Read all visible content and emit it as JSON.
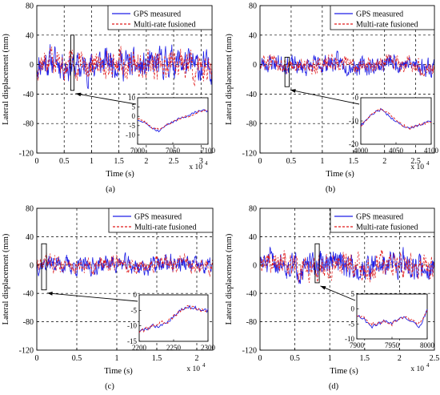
{
  "colors": {
    "gps": "#1f1fe6",
    "fusion": "#e01a1a",
    "grid": "#000000"
  },
  "chart_data": [
    {
      "type": "line",
      "panel_label": "(a)",
      "xlabel": "Time (s)",
      "ylabel": "Lateral displacement (mm)",
      "x_multiplier": "x 10",
      "x_multiplier_exp": "4",
      "xlim": [
        0,
        3.2
      ],
      "ylim": [
        -120,
        80
      ],
      "xticks": [
        0,
        0.5,
        1,
        1.5,
        2,
        2.5,
        3
      ],
      "xtick_labels": [
        "0",
        "0.5",
        "1",
        "1.5",
        "2",
        "2.5",
        "3"
      ],
      "yticks": [
        -120,
        -80,
        -40,
        0,
        40,
        80
      ],
      "ytick_labels": [
        "-120",
        "-80",
        "-40",
        "0",
        "40",
        "80"
      ],
      "grid": true,
      "legend": {
        "placement": "top-right",
        "entries": [
          "GPS measured",
          "Multi-rate fusioned"
        ]
      },
      "series": [
        {
          "name": "GPS measured",
          "style": "solid",
          "amplitude": 18,
          "seed": 11
        },
        {
          "name": "Multi-rate fusioned",
          "style": "dashed",
          "amplitude": 17,
          "seed": 11
        }
      ],
      "highlight_window": {
        "x": [
          0.62,
          0.68
        ],
        "y": [
          -35,
          40
        ]
      },
      "inset": {
        "xlim": [
          7000,
          7100
        ],
        "ylim": [
          -15,
          10
        ],
        "xtick_labels": [
          "7000",
          "7050",
          "7100"
        ],
        "ytick_labels": [
          "-10",
          "-5",
          "0",
          "5",
          "10"
        ],
        "series": [
          {
            "name": "GPS measured",
            "x": [
              7000,
              7010,
              7020,
              7030,
              7040,
              7050,
              7060,
              7070,
              7080,
              7090,
              7100
            ],
            "y": [
              -2,
              -3,
              -6,
              -8,
              -5,
              -3,
              -1,
              0,
              2,
              3,
              3
            ]
          },
          {
            "name": "Multi-rate fusioned",
            "x": [
              7000,
              7010,
              7020,
              7030,
              7040,
              7050,
              7060,
              7070,
              7080,
              7090,
              7100
            ],
            "y": [
              -1,
              -3,
              -6,
              -7,
              -5,
              -3,
              -1,
              0,
              1,
              3,
              3
            ]
          }
        ]
      }
    },
    {
      "type": "line",
      "panel_label": "(b)",
      "xlabel": "Time (s)",
      "ylabel": "Lateral displacement (mm)",
      "x_multiplier": "x 10",
      "x_multiplier_exp": "4",
      "xlim": [
        0,
        2.8
      ],
      "ylim": [
        -120,
        80
      ],
      "xticks": [
        0,
        0.5,
        1,
        1.5,
        2,
        2.5
      ],
      "xtick_labels": [
        "0",
        "0.5",
        "1",
        "1.5",
        "2",
        "2.5"
      ],
      "yticks": [
        -120,
        -80,
        -40,
        0,
        40,
        80
      ],
      "ytick_labels": [
        "-120",
        "-80",
        "-40",
        "0",
        "40",
        "80"
      ],
      "grid": true,
      "legend": {
        "placement": "top-right",
        "entries": [
          "GPS measured",
          "Multi-rate fusioned"
        ]
      },
      "series": [
        {
          "name": "GPS measured",
          "style": "solid",
          "amplitude": 11,
          "seed": 23
        },
        {
          "name": "Multi-rate fusioned",
          "style": "dashed",
          "amplitude": 10,
          "seed": 23
        }
      ],
      "highlight_window": {
        "x": [
          0.4,
          0.47
        ],
        "y": [
          -30,
          10
        ]
      },
      "inset": {
        "xlim": [
          4000,
          4100
        ],
        "ylim": [
          -20,
          0
        ],
        "xtick_labels": [
          "4000",
          "4050",
          "4100"
        ],
        "ytick_labels": [
          "-20",
          "-10",
          "0"
        ],
        "series": [
          {
            "name": "GPS measured",
            "x": [
              4000,
              4010,
              4020,
              4030,
              4040,
              4050,
              4060,
              4070,
              4080,
              4090,
              4100
            ],
            "y": [
              -12,
              -9,
              -6,
              -5,
              -8,
              -10,
              -12,
              -13,
              -12,
              -11,
              -10
            ]
          },
          {
            "name": "Multi-rate fusioned",
            "x": [
              4000,
              4010,
              4020,
              4030,
              4040,
              4050,
              4060,
              4070,
              4080,
              4090,
              4100
            ],
            "y": [
              -12,
              -9,
              -6,
              -5,
              -7,
              -10,
              -12,
              -13,
              -12,
              -11,
              -10
            ]
          }
        ]
      }
    },
    {
      "type": "line",
      "panel_label": "(c)",
      "xlabel": "Time (s)",
      "ylabel": "Lateral displacement (mm)",
      "x_multiplier": "x 10",
      "x_multiplier_exp": "4",
      "xlim": [
        0,
        2.2
      ],
      "ylim": [
        -120,
        80
      ],
      "xticks": [
        0,
        0.5,
        1,
        1.5,
        2
      ],
      "xtick_labels": [
        "0",
        "0.5",
        "1",
        "1.5",
        "2"
      ],
      "yticks": [
        -120,
        -80,
        -40,
        0,
        40,
        80
      ],
      "ytick_labels": [
        "-120",
        "-80",
        "-40",
        "0",
        "40",
        "80"
      ],
      "grid": true,
      "legend": {
        "placement": "top-right",
        "entries": [
          "GPS measured",
          "Multi-rate fusioned"
        ]
      },
      "series": [
        {
          "name": "GPS measured",
          "style": "solid",
          "amplitude": 11,
          "seed": 37
        },
        {
          "name": "Multi-rate fusioned",
          "style": "dashed",
          "amplitude": 10,
          "seed": 37
        }
      ],
      "highlight_window": {
        "x": [
          0.06,
          0.12
        ],
        "y": [
          -35,
          30
        ]
      },
      "inset": {
        "xlim": [
          2200,
          2300
        ],
        "ylim": [
          -15,
          0
        ],
        "xtick_labels": [
          "2200",
          "2250",
          "2300"
        ],
        "ytick_labels": [
          "-15",
          "-10",
          "-5",
          "0"
        ],
        "series": [
          {
            "name": "GPS measured",
            "x": [
              2200,
              2210,
              2220,
              2230,
              2240,
              2250,
              2260,
              2270,
              2280,
              2290,
              2300
            ],
            "y": [
              -12,
              -11,
              -10,
              -10,
              -9,
              -7,
              -5,
              -4,
              -4,
              -5,
              -5
            ]
          },
          {
            "name": "Multi-rate fusioned",
            "x": [
              2200,
              2210,
              2220,
              2230,
              2240,
              2250,
              2260,
              2270,
              2280,
              2290,
              2300
            ],
            "y": [
              -12,
              -11,
              -10,
              -9,
              -9,
              -7,
              -5,
              -4,
              -4,
              -5,
              -5
            ]
          }
        ]
      }
    },
    {
      "type": "line",
      "panel_label": "(d)",
      "xlabel": "Time (s)",
      "ylabel": "Lateral displacement (mm)",
      "x_multiplier": "x 10",
      "x_multiplier_exp": "4",
      "xlim": [
        0,
        2.5
      ],
      "ylim": [
        -120,
        80
      ],
      "xticks": [
        0,
        0.5,
        1,
        1.5,
        2,
        2.5
      ],
      "xtick_labels": [
        "0",
        "0.5",
        "1",
        "1.5",
        "2",
        "2.5"
      ],
      "yticks": [
        -120,
        -80,
        -40,
        0,
        40,
        80
      ],
      "ytick_labels": [
        "-120",
        "-80",
        "-40",
        "0",
        "40",
        "80"
      ],
      "grid": true,
      "legend": {
        "placement": "top-right",
        "entries": [
          "GPS measured",
          "Multi-rate fusioned"
        ]
      },
      "series": [
        {
          "name": "GPS measured",
          "style": "solid",
          "amplitude": 16,
          "seed": 51
        },
        {
          "name": "Multi-rate fusioned",
          "style": "dashed",
          "amplitude": 15,
          "seed": 51
        }
      ],
      "highlight_window": {
        "x": [
          0.79,
          0.85
        ],
        "y": [
          -25,
          30
        ]
      },
      "inset": {
        "xlim": [
          7900,
          8000
        ],
        "ylim": [
          -10,
          5
        ],
        "xtick_labels": [
          "7900",
          "7950",
          "8000"
        ],
        "ytick_labels": [
          "-10",
          "-5",
          "0",
          "5"
        ],
        "series": [
          {
            "name": "GPS measured",
            "x": [
              7900,
              7910,
              7920,
              7930,
              7940,
              7950,
              7960,
              7970,
              7980,
              7990,
              8000
            ],
            "y": [
              -2,
              -3,
              -6,
              -5,
              -4,
              -5,
              -3,
              -3,
              -4,
              -6,
              0
            ]
          },
          {
            "name": "Multi-rate fusioned",
            "x": [
              7900,
              7910,
              7920,
              7930,
              7940,
              7950,
              7960,
              7970,
              7980,
              7990,
              8000
            ],
            "y": [
              -2,
              -3,
              -5,
              -5,
              -4,
              -5,
              -3,
              -3,
              -4,
              -5,
              0
            ]
          }
        ]
      }
    }
  ]
}
